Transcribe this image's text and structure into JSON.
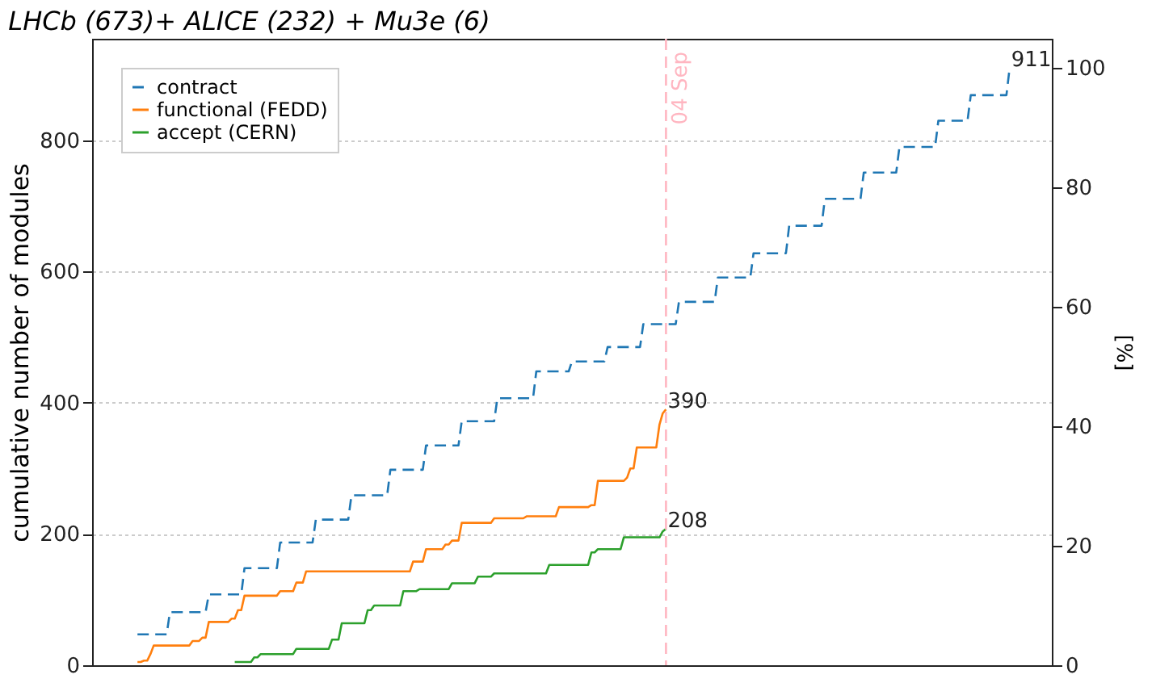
{
  "chart_data": {
    "type": "line",
    "title": "LHCb (673)+ ALICE (232) + Mu3e (6)",
    "ylabel": "cumulative number of modules",
    "y2label": "[%]",
    "categories": [
      null,
      null,
      null,
      null,
      null,
      null,
      null,
      null,
      null,
      null,
      null,
      null,
      null,
      null,
      null,
      null,
      null,
      null,
      null,
      null,
      null,
      null,
      null,
      null,
      null,
      null,
      null,
      null,
      null,
      null,
      null,
      null,
      null,
      null,
      null,
      null,
      null,
      null,
      null,
      null,
      null,
      null,
      null,
      null,
      null,
      null,
      null,
      null,
      null,
      null,
      null,
      null,
      null,
      null,
      null,
      null,
      null,
      null,
      null,
      null,
      null,
      null,
      null,
      null,
      null,
      null,
      null,
      null,
      null,
      null,
      null,
      null,
      null,
      null,
      null,
      null,
      null,
      null,
      null,
      null,
      null,
      null,
      null,
      null,
      null,
      null,
      null,
      null,
      null,
      null,
      null,
      null,
      null,
      null,
      null,
      null,
      null,
      null,
      null,
      null,
      null,
      null,
      null,
      null,
      null,
      null,
      null,
      null,
      null,
      null,
      null,
      null,
      null,
      null,
      null,
      null,
      null,
      null,
      null,
      null,
      null,
      null,
      null,
      null,
      null,
      null,
      null,
      null,
      null,
      null,
      null,
      null,
      null,
      null,
      null,
      null,
      null,
      null,
      null,
      null,
      null,
      null,
      null,
      null,
      null,
      null,
      null,
      null,
      null,
      null,
      null,
      null,
      null,
      null,
      null,
      null,
      null,
      null,
      null,
      null,
      null,
      null,
      null,
      null,
      null,
      null,
      null,
      null,
      null,
      null,
      null,
      null,
      null,
      null,
      null,
      null,
      null,
      null,
      null,
      null,
      null,
      null,
      null,
      null,
      null,
      null,
      null,
      null,
      null,
      null,
      null,
      null,
      null,
      null,
      null,
      null,
      null,
      null,
      null,
      null,
      null,
      null,
      null,
      null,
      null,
      null,
      null,
      null,
      null,
      null,
      null,
      null,
      null,
      null,
      null,
      null,
      null,
      null,
      null,
      null,
      null,
      null,
      null,
      null,
      null,
      null,
      null,
      null,
      null,
      null,
      null,
      null,
      null,
      null,
      null,
      null,
      null,
      null,
      null,
      null,
      null,
      null,
      null,
      null,
      null,
      null,
      null,
      null,
      null,
      null,
      null,
      null,
      null,
      null,
      null,
      null,
      null,
      null,
      null,
      null,
      null,
      null,
      null,
      null,
      null,
      null,
      null,
      null,
      null,
      null,
      null,
      null,
      null,
      null,
      null,
      null,
      null,
      null,
      null,
      null,
      null,
      null,
      null,
      null,
      null,
      null,
      null,
      null,
      null,
      null,
      null,
      null,
      null,
      null,
      null,
      null,
      null
    ],
    "ylim": [
      0,
      955
    ],
    "yticks": [
      0,
      200,
      400,
      600,
      800
    ],
    "y2lim": [
      0,
      104.8
    ],
    "y2ticks": [
      0,
      20,
      40,
      60,
      80,
      100
    ],
    "grid": "y",
    "legend": "top left",
    "tick_labels": "y",
    "series": [
      {
        "name": "contract",
        "color": "#1f77b4",
        "line_style": "dashed",
        "values": [
          null,
          null,
          null,
          null,
          null,
          null,
          null,
          null,
          null,
          null,
          null,
          null,
          null,
          null,
          47,
          47,
          47,
          47,
          47,
          47,
          47,
          47,
          47,
          47,
          81,
          81,
          81,
          81,
          81,
          81,
          81,
          81,
          81,
          81,
          81,
          81,
          108,
          108,
          108,
          108,
          108,
          108,
          108,
          108,
          108,
          108,
          108,
          148,
          148,
          148,
          148,
          148,
          148,
          148,
          148,
          148,
          148,
          148,
          187,
          187,
          187,
          187,
          187,
          187,
          187,
          187,
          187,
          187,
          187,
          222,
          222,
          222,
          222,
          222,
          222,
          222,
          222,
          222,
          222,
          222,
          259,
          259,
          259,
          259,
          259,
          259,
          259,
          259,
          259,
          259,
          259,
          259,
          298,
          298,
          298,
          298,
          298,
          298,
          298,
          298,
          298,
          298,
          298,
          335,
          335,
          335,
          335,
          335,
          335,
          335,
          335,
          335,
          335,
          335,
          372,
          372,
          372,
          372,
          372,
          372,
          372,
          372,
          372,
          372,
          372,
          407,
          407,
          407,
          407,
          407,
          407,
          407,
          407,
          407,
          407,
          407,
          407,
          448,
          448,
          448,
          448,
          448,
          448,
          448,
          448,
          448,
          448,
          448,
          463,
          463,
          463,
          463,
          463,
          463,
          463,
          463,
          463,
          463,
          463,
          485,
          485,
          485,
          485,
          485,
          485,
          485,
          485,
          485,
          485,
          485,
          520,
          520,
          520,
          520,
          520,
          520,
          520,
          520,
          520,
          520,
          520,
          554,
          554,
          554,
          554,
          554,
          554,
          554,
          554,
          554,
          554,
          554,
          554,
          591,
          591,
          591,
          591,
          591,
          591,
          591,
          591,
          591,
          591,
          591,
          628,
          628,
          628,
          628,
          628,
          628,
          628,
          628,
          628,
          628,
          628,
          670,
          670,
          670,
          670,
          670,
          670,
          670,
          670,
          670,
          670,
          670,
          711,
          711,
          711,
          711,
          711,
          711,
          711,
          711,
          711,
          711,
          711,
          711,
          751,
          751,
          751,
          751,
          751,
          751,
          751,
          751,
          751,
          751,
          751,
          790,
          790,
          790,
          790,
          790,
          790,
          790,
          790,
          790,
          790,
          790,
          790,
          830,
          830,
          830,
          830,
          830,
          830,
          830,
          830,
          830,
          830,
          869,
          869,
          869,
          869,
          869,
          869,
          869,
          869,
          869,
          869,
          869,
          869,
          911,
          null,
          null,
          null,
          null,
          null,
          null,
          null,
          null,
          null,
          null,
          null,
          null,
          null
        ]
      },
      {
        "name": "functional (FEDD)",
        "color": "#ff7f0e",
        "line_style": "solid",
        "values": [
          null,
          null,
          null,
          null,
          null,
          null,
          null,
          null,
          null,
          null,
          null,
          null,
          null,
          null,
          5,
          5,
          7,
          7,
          17,
          30,
          30,
          30,
          30,
          30,
          30,
          30,
          30,
          30,
          30,
          30,
          30,
          37,
          37,
          37,
          42,
          42,
          66,
          66,
          66,
          66,
          66,
          66,
          66,
          71,
          71,
          84,
          84,
          106,
          106,
          106,
          106,
          106,
          106,
          106,
          106,
          106,
          106,
          106,
          113,
          113,
          113,
          113,
          113,
          126,
          126,
          126,
          143,
          143,
          143,
          143,
          143,
          143,
          143,
          143,
          143,
          143,
          143,
          143,
          143,
          143,
          143,
          143,
          143,
          143,
          143,
          143,
          143,
          143,
          143,
          143,
          143,
          143,
          143,
          143,
          143,
          143,
          143,
          143,
          143,
          158,
          158,
          158,
          158,
          177,
          177,
          177,
          177,
          177,
          177,
          184,
          184,
          190,
          190,
          190,
          217,
          217,
          217,
          217,
          217,
          217,
          217,
          217,
          217,
          217,
          224,
          224,
          224,
          224,
          224,
          224,
          224,
          224,
          224,
          224,
          227,
          227,
          227,
          227,
          227,
          227,
          227,
          227,
          227,
          227,
          241,
          241,
          241,
          241,
          241,
          241,
          241,
          241,
          241,
          241,
          244,
          244,
          281,
          281,
          281,
          281,
          281,
          281,
          281,
          281,
          281,
          286,
          300,
          300,
          332,
          332,
          332,
          332,
          332,
          332,
          332,
          367,
          384,
          390,
          null,
          null,
          null,
          null,
          null,
          null,
          null,
          null,
          null,
          null,
          null,
          null,
          null,
          null,
          null,
          null,
          null,
          null,
          null,
          null,
          null,
          null,
          null,
          null,
          null,
          null,
          null,
          null,
          null,
          null,
          null,
          null,
          null,
          null,
          null,
          null,
          null,
          null,
          null,
          null,
          null,
          null,
          null,
          null,
          null,
          null,
          null,
          null,
          null,
          null,
          null,
          null,
          null,
          null,
          null,
          null,
          null,
          null,
          null,
          null,
          null,
          null,
          null,
          null,
          null,
          null,
          null,
          null,
          null,
          null,
          null,
          null,
          null,
          null,
          null,
          null,
          null,
          null,
          null,
          null,
          null,
          null,
          null,
          null,
          null,
          null,
          null,
          null,
          null,
          null,
          null,
          null,
          null,
          null,
          null,
          null,
          null,
          null,
          null,
          null,
          null,
          null,
          null,
          null,
          null,
          null,
          null,
          null,
          null,
          null,
          null,
          null,
          null,
          null,
          null,
          null,
          null,
          null,
          null
        ]
      },
      {
        "name": "accept (CERN)",
        "color": "#2ca02c",
        "line_style": "solid",
        "values": [
          null,
          null,
          null,
          null,
          null,
          null,
          null,
          null,
          null,
          null,
          null,
          null,
          null,
          null,
          null,
          null,
          null,
          null,
          null,
          null,
          null,
          null,
          null,
          null,
          null,
          null,
          null,
          null,
          null,
          null,
          null,
          null,
          null,
          null,
          null,
          null,
          null,
          null,
          null,
          null,
          null,
          null,
          null,
          null,
          5,
          5,
          5,
          5,
          5,
          5,
          12,
          12,
          17,
          17,
          17,
          17,
          17,
          17,
          17,
          17,
          17,
          17,
          17,
          25,
          25,
          25,
          25,
          25,
          25,
          25,
          25,
          25,
          25,
          25,
          39,
          39,
          39,
          64,
          64,
          64,
          64,
          64,
          64,
          64,
          64,
          84,
          84,
          91,
          91,
          91,
          91,
          91,
          91,
          91,
          91,
          91,
          113,
          113,
          113,
          113,
          113,
          116,
          116,
          116,
          116,
          116,
          116,
          116,
          116,
          116,
          116,
          125,
          125,
          125,
          125,
          125,
          125,
          125,
          125,
          135,
          135,
          135,
          135,
          135,
          140,
          140,
          140,
          140,
          140,
          140,
          140,
          140,
          140,
          140,
          140,
          140,
          140,
          140,
          140,
          140,
          140,
          153,
          153,
          153,
          153,
          153,
          153,
          153,
          153,
          153,
          153,
          153,
          153,
          153,
          172,
          172,
          177,
          177,
          177,
          177,
          177,
          177,
          177,
          177,
          195,
          195,
          195,
          195,
          195,
          195,
          195,
          195,
          195,
          195,
          195,
          195,
          204,
          208,
          null,
          null,
          null,
          null,
          null,
          null,
          null,
          null,
          null,
          null,
          null,
          null,
          null,
          null,
          null,
          null,
          null,
          null,
          null,
          null,
          null,
          null,
          null,
          null,
          null,
          null,
          null,
          null,
          null,
          null,
          null,
          null,
          null,
          null,
          null,
          null,
          null,
          null,
          null,
          null,
          null,
          null,
          null,
          null,
          null,
          null,
          null,
          null,
          null,
          null,
          null,
          null,
          null,
          null,
          null,
          null,
          null,
          null,
          null,
          null,
          null,
          null,
          null,
          null,
          null,
          null,
          null,
          null,
          null,
          null,
          null,
          null,
          null,
          null,
          null,
          null,
          null,
          null,
          null,
          null,
          null,
          null,
          null,
          null,
          null,
          null,
          null,
          null,
          null,
          null,
          null,
          null,
          null,
          null,
          null,
          null,
          null,
          null,
          null,
          null,
          null,
          null,
          null,
          null,
          null,
          null,
          null,
          null,
          null,
          null,
          null,
          null,
          null,
          null,
          null,
          null,
          null,
          null,
          null
        ]
      }
    ],
    "annotations": [
      "911",
      "390",
      "208",
      "04 Sep"
    ]
  }
}
